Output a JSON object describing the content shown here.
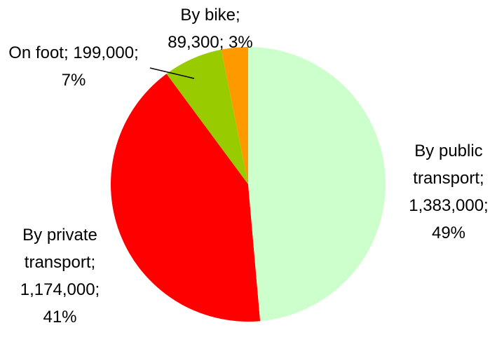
{
  "chart_data": {
    "type": "pie",
    "categories": [
      "By public transport",
      "By private transport",
      "On foot",
      "By bike"
    ],
    "values": [
      1383000,
      1174000,
      199000,
      89300
    ],
    "value_labels": [
      "1,383,000",
      "1,174,000",
      "199,000",
      "89,300"
    ],
    "percent_labels": [
      "49%",
      "41%",
      "7%",
      "3%"
    ],
    "separator": ";",
    "colors": [
      "#ccffcc",
      "#ff0000",
      "#99cc00",
      "#ff9900"
    ]
  }
}
